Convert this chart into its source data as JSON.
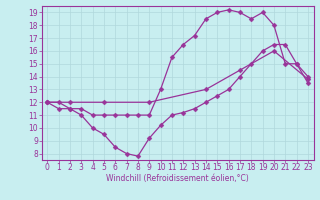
{
  "xlabel": "Windchill (Refroidissement éolien,°C)",
  "bg_color": "#c8eef0",
  "line_color": "#993399",
  "grid_color": "#b0d8dc",
  "xlim": [
    -0.5,
    23.5
  ],
  "ylim": [
    7.5,
    19.5
  ],
  "xticks": [
    0,
    1,
    2,
    3,
    4,
    5,
    6,
    7,
    8,
    9,
    10,
    11,
    12,
    13,
    14,
    15,
    16,
    17,
    18,
    19,
    20,
    21,
    22,
    23
  ],
  "yticks": [
    8,
    9,
    10,
    11,
    12,
    13,
    14,
    15,
    16,
    17,
    18,
    19
  ],
  "line1_x": [
    0,
    1,
    2,
    3,
    4,
    5,
    6,
    7,
    8,
    9,
    10,
    11,
    12,
    13,
    14,
    15,
    16,
    17,
    18,
    19,
    20,
    21,
    22,
    23
  ],
  "line1_y": [
    12,
    11.5,
    11.5,
    11,
    10,
    9.5,
    8.5,
    8,
    7.8,
    9.2,
    10.2,
    11,
    11.2,
    11.5,
    12,
    12.5,
    13,
    14,
    15,
    16,
    16.5,
    16.5,
    15,
    14
  ],
  "line2_x": [
    0,
    1,
    2,
    3,
    4,
    5,
    6,
    7,
    8,
    9,
    10,
    11,
    12,
    13,
    14,
    15,
    16,
    17,
    18,
    19,
    20,
    21,
    22,
    23
  ],
  "line2_y": [
    12,
    12,
    11.5,
    11.5,
    11,
    11,
    11,
    11,
    11,
    11,
    13,
    15.5,
    16.5,
    17.2,
    18.5,
    19,
    19.2,
    19,
    18.5,
    19,
    18,
    15,
    15,
    13.5
  ],
  "line3_x": [
    0,
    2,
    5,
    9,
    14,
    17,
    20,
    23
  ],
  "line3_y": [
    12,
    12,
    12,
    12,
    13,
    14.5,
    16,
    13.8
  ],
  "markersize": 2.5,
  "tick_fontsize": 5.5,
  "xlabel_fontsize": 5.5,
  "linewidth": 0.9
}
